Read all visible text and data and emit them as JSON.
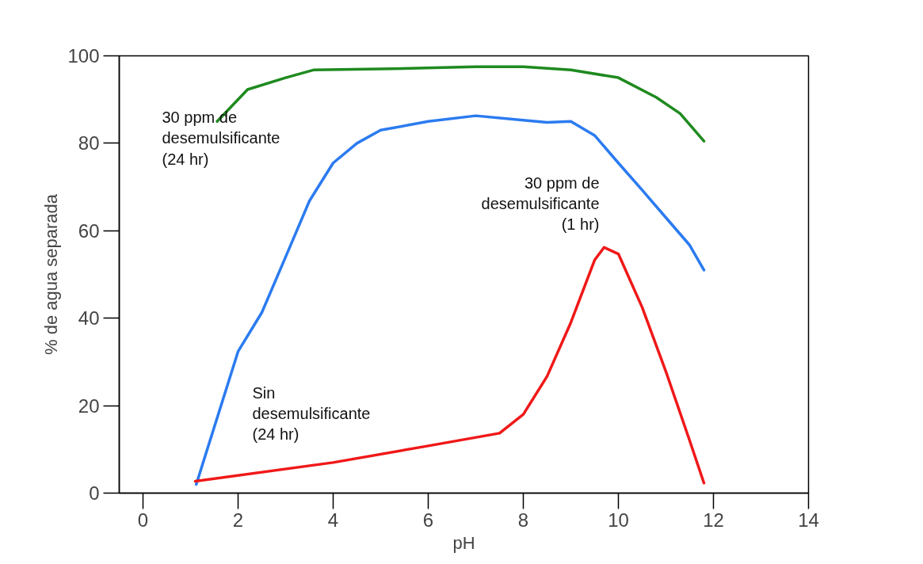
{
  "chart_data": {
    "type": "line",
    "xlabel": "pH",
    "ylabel": "% de agua separada",
    "xlim": [
      -0.5,
      14
    ],
    "ylim": [
      0,
      100
    ],
    "xticks": [
      0,
      2,
      4,
      6,
      8,
      10,
      12,
      14
    ],
    "yticks": [
      0,
      20,
      40,
      60,
      80,
      100
    ],
    "grid": false,
    "marker": "none",
    "line_style": "solid",
    "series": [
      {
        "color": "#1f8a1f",
        "x": [
          1.56,
          2.2,
          3,
          3.6,
          5,
          7,
          8,
          9,
          10,
          10.8,
          11.3,
          11.8
        ],
        "values": [
          85,
          92.3,
          95,
          96.8,
          97,
          97.5,
          97.5,
          96.8,
          95,
          90.5,
          86.8,
          80.5
        ]
      },
      {
        "color": "#2b7bf0",
        "x": [
          1.12,
          2,
          2.5,
          3,
          3.5,
          4,
          4.5,
          5,
          6,
          7,
          8,
          8.5,
          9,
          9.5,
          10,
          10.5,
          11,
          11.5,
          11.8
        ],
        "values": [
          2,
          32.4,
          41.3,
          54,
          66.8,
          75.5,
          80,
          83,
          85,
          86.3,
          85.3,
          84.8,
          85,
          81.8,
          75.5,
          69.3,
          63,
          56.7,
          51
        ]
      },
      {
        "color": "#f01818",
        "x": [
          1.1,
          4,
          6,
          7.5,
          8,
          8.5,
          9,
          9.5,
          9.7,
          10,
          10.5,
          11,
          11.5,
          11.8
        ],
        "values": [
          2.7,
          7,
          10.8,
          13.7,
          18,
          26.7,
          39,
          53.3,
          56.2,
          54.7,
          42.5,
          27.8,
          12,
          2.3
        ]
      }
    ],
    "annotations": [
      "30 ppm de\ndesemulsificante\n(24 hr)",
      "30 ppm de\ndesemulsificante\n(1 hr)",
      "Sin\ndesemulsificante\n(24 hr)"
    ]
  }
}
